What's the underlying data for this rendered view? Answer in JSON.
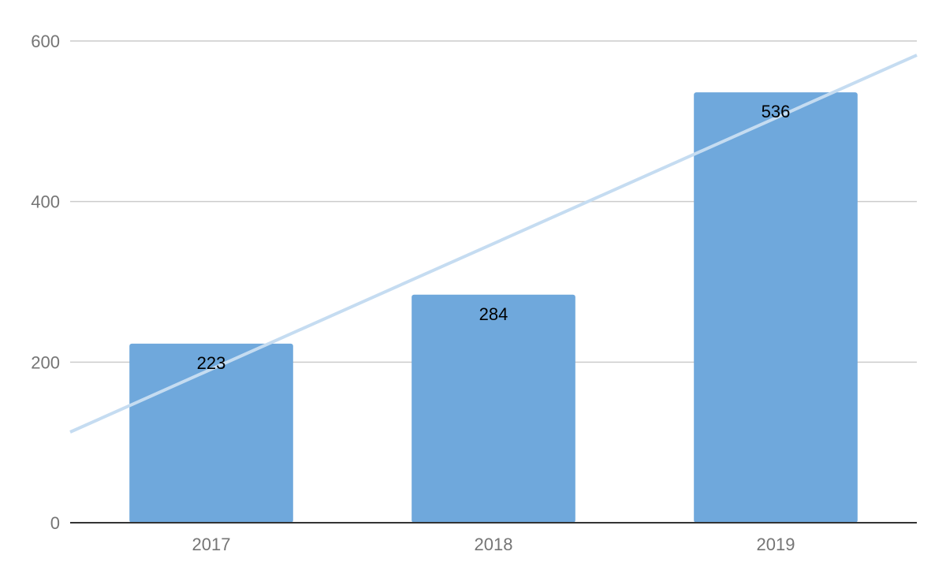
{
  "chart_data": {
    "type": "bar",
    "title": "",
    "xlabel": "",
    "ylabel": "",
    "categories": [
      "2017",
      "2018",
      "2019"
    ],
    "values": [
      223,
      284,
      536
    ],
    "data_labels": [
      "223",
      "284",
      "536"
    ],
    "ylim": [
      0,
      600
    ],
    "yticks": [
      0,
      200,
      400,
      600
    ],
    "ytick_labels": [
      "0",
      "200",
      "400",
      "600"
    ],
    "grid": true,
    "legend": "none",
    "trendline": {
      "type": "linear",
      "visible": true
    },
    "colors": {
      "bar": "#6fa8dc",
      "trendline": "#c5dcf1",
      "grid": "#cccccc",
      "axis": "#333333",
      "tick_text": "#757575",
      "label_text": "#000000"
    }
  }
}
